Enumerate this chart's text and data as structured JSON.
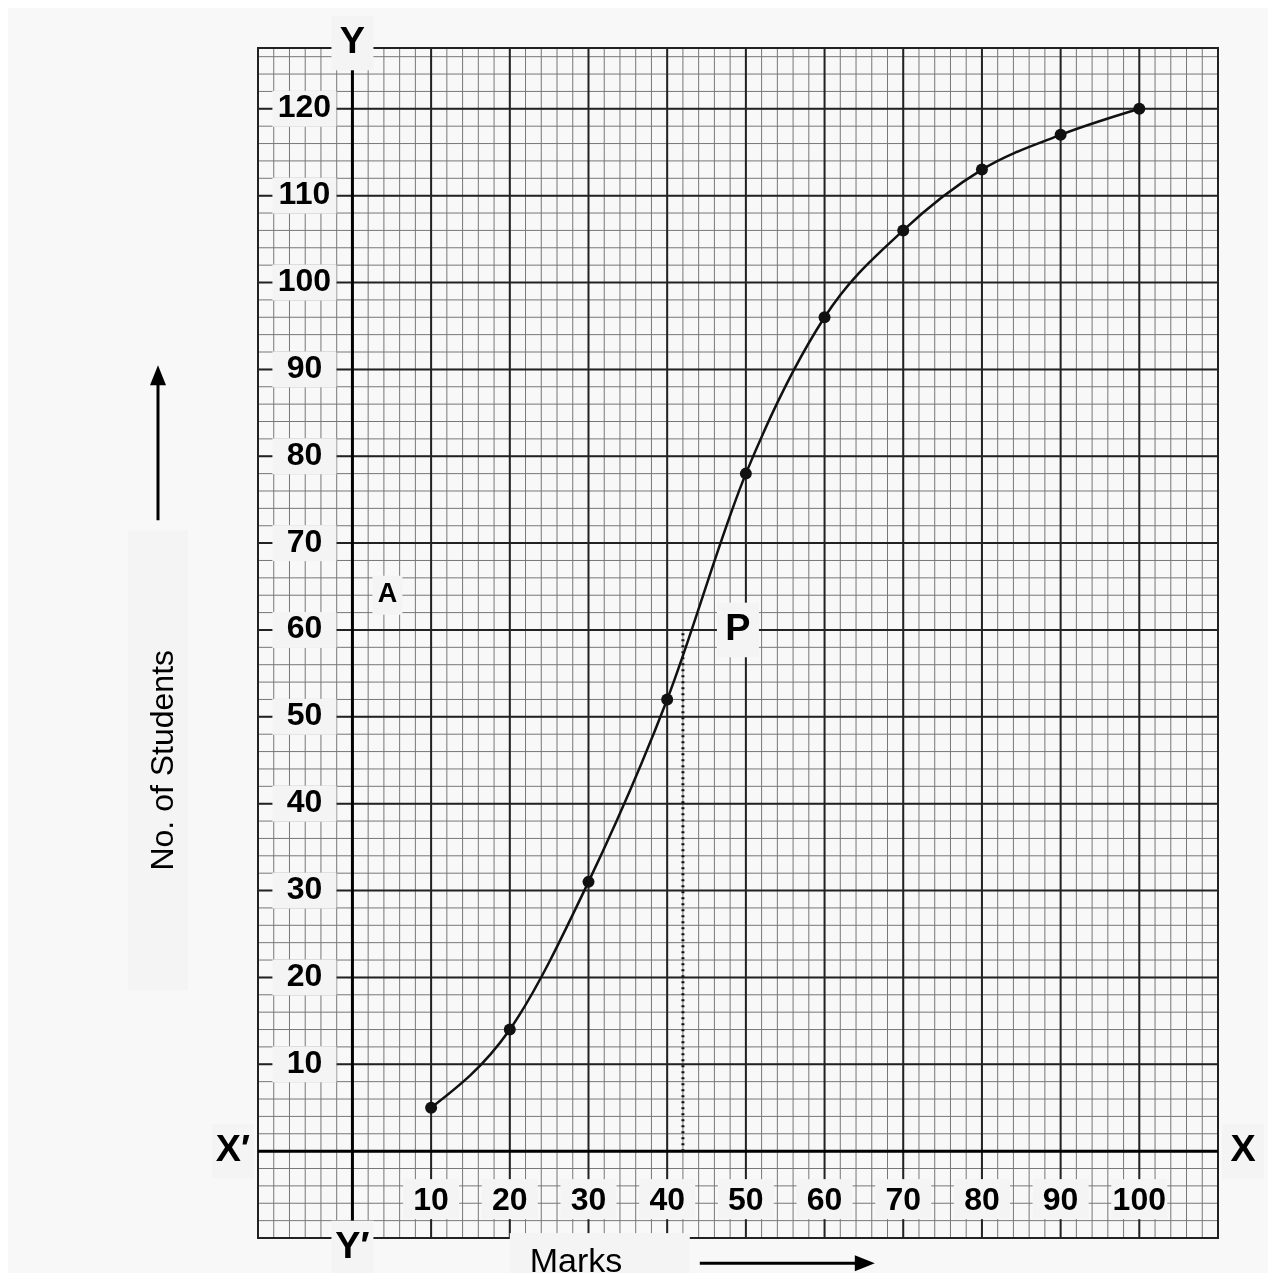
{
  "chart_data": {
    "type": "line",
    "xlabel": "Marks",
    "ylabel": "No. of Students",
    "x": [
      10,
      20,
      30,
      40,
      50,
      60,
      70,
      80,
      90,
      100
    ],
    "series": [
      {
        "color": "#111111",
        "values": [
          5,
          14,
          31,
          52,
          78,
          96,
          106,
          113,
          117,
          120
        ]
      }
    ],
    "xlim": [
      -12,
      110
    ],
    "ylim": [
      -10,
      127
    ],
    "xticks": [
      10,
      20,
      30,
      40,
      50,
      60,
      70,
      80,
      90,
      100
    ],
    "yticks": [
      10,
      20,
      30,
      40,
      50,
      60,
      70,
      80,
      90,
      100,
      110,
      120
    ],
    "grid": true,
    "marker": "circle",
    "line_style": "solid",
    "ref_lines": [
      {
        "axis": "x",
        "value": 42,
        "line_style": "dotted",
        "color": "#111111"
      }
    ],
    "annotations": [
      "X",
      "X′",
      "Y",
      "Y′",
      "A",
      {
        "text": "P",
        "x": 42,
        "y": 60
      }
    ]
  }
}
